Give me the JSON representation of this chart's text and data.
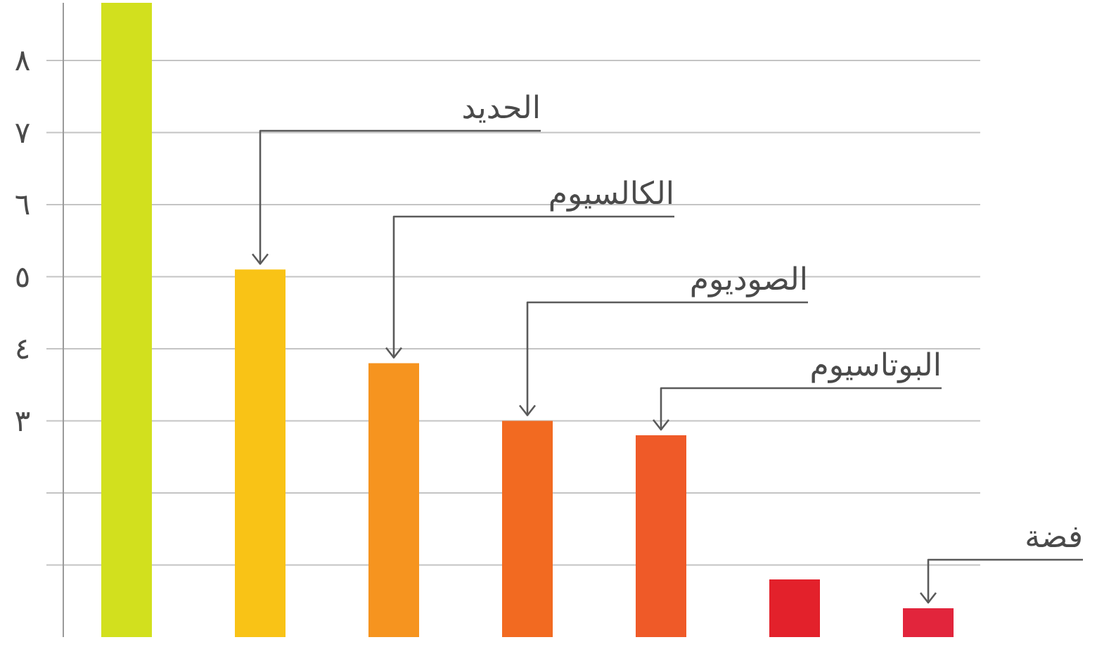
{
  "chart_data": {
    "type": "bar",
    "categories": [
      null,
      null,
      null,
      null,
      null,
      null,
      null
    ],
    "values": [
      8.8,
      5.1,
      3.8,
      3.0,
      2.8,
      0.8,
      0.4
    ],
    "colors": [
      "#d2e01e",
      "#f9c316",
      "#f6941f",
      "#f26a21",
      "#ef5a28",
      "#e3212b",
      "#e2253c"
    ],
    "ylim": [
      0,
      8.8
    ],
    "yticks": [
      {
        "value": 1,
        "label": null
      },
      {
        "value": 2,
        "label": null
      },
      {
        "value": 3,
        "label": "٣"
      },
      {
        "value": 4,
        "label": "٤"
      },
      {
        "value": 5,
        "label": "٥"
      },
      {
        "value": 6,
        "label": "٦"
      },
      {
        "value": 7,
        "label": "٧"
      },
      {
        "value": 8,
        "label": "٨"
      }
    ],
    "grid": "y",
    "annotations": [
      "الحديد",
      "الكالسيوم",
      "الصوديوم",
      "البوتاسيوم",
      "فضة"
    ]
  }
}
